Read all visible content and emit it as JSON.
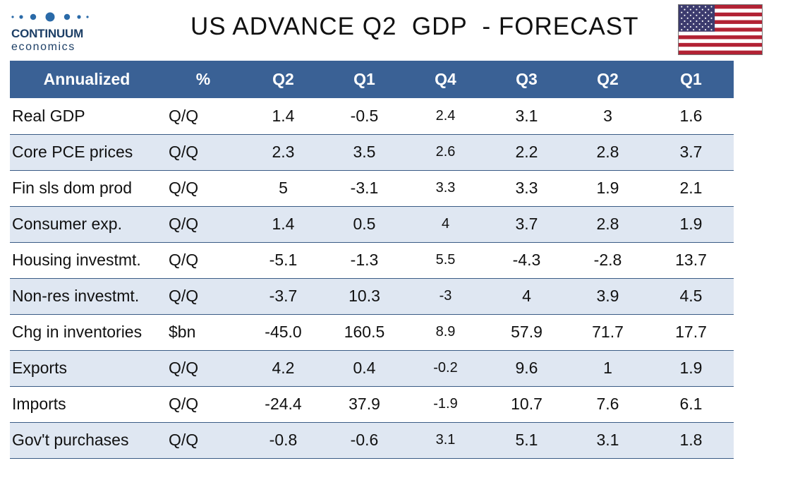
{
  "logo": {
    "brand": "CONTINUUM",
    "sub": "economics"
  },
  "title": "US ADVANCE Q2  GDP  - FORECAST",
  "flag_icon": "us-flag-icon",
  "colors": {
    "header_bg": "#3a6195",
    "stripe_bg": "#dfe7f2",
    "brand": "#1d3f66"
  },
  "table": {
    "headers": [
      "Annualized",
      "%",
      "Q2",
      "Q1",
      "Q4",
      "Q3",
      "Q2",
      "Q1"
    ],
    "rows": [
      [
        "Real GDP",
        "Q/Q",
        "1.4",
        "-0.5",
        "2.4",
        "3.1",
        "3",
        "1.6"
      ],
      [
        "Core PCE prices",
        "Q/Q",
        "2.3",
        "3.5",
        "2.6",
        "2.2",
        "2.8",
        "3.7"
      ],
      [
        "Fin sls dom prod",
        "Q/Q",
        "5",
        "-3.1",
        "3.3",
        "3.3",
        "1.9",
        "2.1"
      ],
      [
        "Consumer exp.",
        "Q/Q",
        "1.4",
        "0.5",
        "4",
        "3.7",
        "2.8",
        "1.9"
      ],
      [
        "Housing investmt.",
        "Q/Q",
        "-5.1",
        "-1.3",
        "5.5",
        "-4.3",
        "-2.8",
        "13.7"
      ],
      [
        "Non-res investmt.",
        "Q/Q",
        "-3.7",
        "10.3",
        "-3",
        "4",
        "3.9",
        "4.5"
      ],
      [
        "Chg in inventories",
        "$bn",
        "-45.0",
        "160.5",
        "8.9",
        "57.9",
        "71.7",
        "17.7"
      ],
      [
        "Exports",
        "Q/Q",
        "4.2",
        "0.4",
        "-0.2",
        "9.6",
        "1",
        "1.9"
      ],
      [
        "Imports",
        "Q/Q",
        "-24.4",
        "37.9",
        "-1.9",
        "10.7",
        "7.6",
        "6.1"
      ],
      [
        "Gov't purchases",
        "Q/Q",
        "-0.8",
        "-0.6",
        "3.1",
        "5.1",
        "3.1",
        "1.8"
      ]
    ]
  }
}
